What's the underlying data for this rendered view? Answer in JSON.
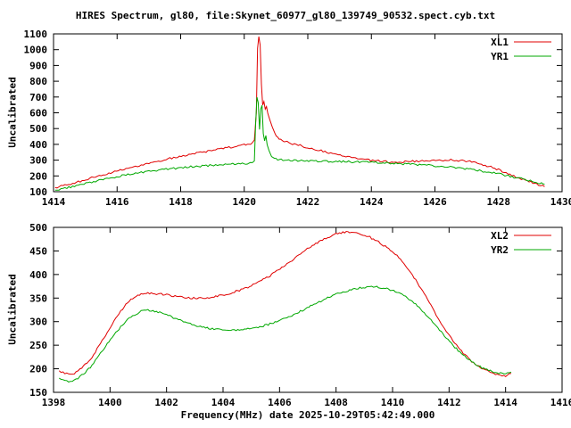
{
  "title": "HIRES Spectrum, gl80, file:Skynet_60977_gl80_139749_90532.spect.cyb.txt",
  "xlabel": "Frequency(MHz) date 2025-10-29T05:42:49.000",
  "colors": {
    "xl": "#e00000",
    "yr": "#00a800",
    "axis": "#000000",
    "background": "#ffffff"
  },
  "chart_data": [
    {
      "type": "line",
      "ylabel": "Uncalibrated",
      "xlim": [
        1414,
        1430
      ],
      "ylim": [
        100,
        1100
      ],
      "xticks": [
        1414,
        1416,
        1418,
        1420,
        1422,
        1424,
        1426,
        1428,
        1430
      ],
      "yticks": [
        100,
        200,
        300,
        400,
        500,
        600,
        700,
        800,
        900,
        1000,
        1100
      ],
      "grid": false,
      "legend_position": "top-right",
      "series": [
        {
          "name": "XL1",
          "color": "#e00000",
          "points": [
            [
              1414.05,
              126
            ],
            [
              1414.3,
              138
            ],
            [
              1414.6,
              153
            ],
            [
              1414.9,
              170
            ],
            [
              1415.2,
              188
            ],
            [
              1415.5,
              205
            ],
            [
              1415.8,
              221
            ],
            [
              1416.1,
              237
            ],
            [
              1416.4,
              252
            ],
            [
              1416.7,
              267
            ],
            [
              1417.0,
              281
            ],
            [
              1417.3,
              295
            ],
            [
              1417.6,
              308
            ],
            [
              1417.9,
              320
            ],
            [
              1418.2,
              332
            ],
            [
              1418.5,
              344
            ],
            [
              1418.8,
              355
            ],
            [
              1419.1,
              366
            ],
            [
              1419.4,
              376
            ],
            [
              1419.7,
              386
            ],
            [
              1420.0,
              396
            ],
            [
              1420.15,
              402
            ],
            [
              1420.25,
              410
            ],
            [
              1420.32,
              430
            ],
            [
              1420.38,
              600
            ],
            [
              1420.42,
              1010
            ],
            [
              1420.46,
              1085
            ],
            [
              1420.5,
              1030
            ],
            [
              1420.54,
              780
            ],
            [
              1420.58,
              650
            ],
            [
              1420.62,
              665
            ],
            [
              1420.66,
              620
            ],
            [
              1420.7,
              645
            ],
            [
              1420.74,
              600
            ],
            [
              1420.8,
              560
            ],
            [
              1420.88,
              515
            ],
            [
              1420.96,
              472
            ],
            [
              1421.05,
              445
            ],
            [
              1421.2,
              425
            ],
            [
              1421.4,
              410
            ],
            [
              1421.7,
              395
            ],
            [
              1422.0,
              380
            ],
            [
              1422.3,
              365
            ],
            [
              1422.6,
              350
            ],
            [
              1422.9,
              336
            ],
            [
              1423.2,
              323
            ],
            [
              1423.5,
              312
            ],
            [
              1423.8,
              303
            ],
            [
              1424.1,
              296
            ],
            [
              1424.4,
              291
            ],
            [
              1424.7,
              289
            ],
            [
              1425.0,
              290
            ],
            [
              1425.3,
              292
            ],
            [
              1425.6,
              295
            ],
            [
              1425.9,
              297
            ],
            [
              1426.2,
              299
            ],
            [
              1426.5,
              300
            ],
            [
              1426.8,
              298
            ],
            [
              1427.1,
              291
            ],
            [
              1427.4,
              278
            ],
            [
              1427.7,
              260
            ],
            [
              1428.0,
              239
            ],
            [
              1428.3,
              215
            ],
            [
              1428.6,
              191
            ],
            [
              1428.9,
              168
            ],
            [
              1429.2,
              148
            ],
            [
              1429.45,
              132
            ]
          ]
        },
        {
          "name": "YR1",
          "color": "#00a800",
          "points": [
            [
              1414.05,
              110
            ],
            [
              1414.3,
              120
            ],
            [
              1414.6,
              132
            ],
            [
              1414.9,
              146
            ],
            [
              1415.2,
              160
            ],
            [
              1415.5,
              174
            ],
            [
              1415.8,
              187
            ],
            [
              1416.1,
              199
            ],
            [
              1416.4,
              210
            ],
            [
              1416.7,
              220
            ],
            [
              1417.0,
              229
            ],
            [
              1417.3,
              237
            ],
            [
              1417.6,
              244
            ],
            [
              1417.9,
              250
            ],
            [
              1418.2,
              256
            ],
            [
              1418.5,
              261
            ],
            [
              1418.8,
              265
            ],
            [
              1419.1,
              269
            ],
            [
              1419.4,
              272
            ],
            [
              1419.7,
              275
            ],
            [
              1420.0,
              278
            ],
            [
              1420.15,
              281
            ],
            [
              1420.25,
              285
            ],
            [
              1420.32,
              300
            ],
            [
              1420.36,
              540
            ],
            [
              1420.4,
              705
            ],
            [
              1420.44,
              660
            ],
            [
              1420.48,
              500
            ],
            [
              1420.52,
              620
            ],
            [
              1420.56,
              645
            ],
            [
              1420.6,
              470
            ],
            [
              1420.64,
              420
            ],
            [
              1420.68,
              455
            ],
            [
              1420.72,
              400
            ],
            [
              1420.78,
              355
            ],
            [
              1420.86,
              325
            ],
            [
              1420.95,
              310
            ],
            [
              1421.1,
              304
            ],
            [
              1421.4,
              300
            ],
            [
              1421.8,
              297
            ],
            [
              1422.2,
              295
            ],
            [
              1422.6,
              293
            ],
            [
              1423.0,
              291
            ],
            [
              1423.4,
              289
            ],
            [
              1423.8,
              287
            ],
            [
              1424.2,
              284
            ],
            [
              1424.6,
              281
            ],
            [
              1425.0,
              277
            ],
            [
              1425.4,
              272
            ],
            [
              1425.8,
              267
            ],
            [
              1426.2,
              260
            ],
            [
              1426.6,
              253
            ],
            [
              1427.0,
              244
            ],
            [
              1427.4,
              233
            ],
            [
              1427.8,
              220
            ],
            [
              1428.2,
              205
            ],
            [
              1428.6,
              188
            ],
            [
              1429.0,
              169
            ],
            [
              1429.3,
              155
            ],
            [
              1429.45,
              148
            ]
          ]
        }
      ]
    },
    {
      "type": "line",
      "ylabel": "Uncalibrated",
      "xlim": [
        1398,
        1416
      ],
      "ylim": [
        150,
        500
      ],
      "xticks": [
        1398,
        1400,
        1402,
        1404,
        1406,
        1408,
        1410,
        1412,
        1414,
        1416
      ],
      "yticks": [
        150,
        200,
        250,
        300,
        350,
        400,
        450,
        500
      ],
      "grid": false,
      "legend_position": "top-right",
      "series": [
        {
          "name": "XL2",
          "color": "#e00000",
          "points": [
            [
              1398.2,
              196
            ],
            [
              1398.4,
              190
            ],
            [
              1398.6,
              188
            ],
            [
              1398.8,
              192
            ],
            [
              1399.0,
              202
            ],
            [
              1399.3,
              220
            ],
            [
              1399.6,
              247
            ],
            [
              1399.9,
              278
            ],
            [
              1400.2,
              308
            ],
            [
              1400.5,
              332
            ],
            [
              1400.8,
              350
            ],
            [
              1401.1,
              358
            ],
            [
              1401.4,
              360
            ],
            [
              1401.7,
              359
            ],
            [
              1402.0,
              357
            ],
            [
              1402.3,
              354
            ],
            [
              1402.6,
              351
            ],
            [
              1402.9,
              350
            ],
            [
              1403.2,
              350
            ],
            [
              1403.5,
              351
            ],
            [
              1403.8,
              354
            ],
            [
              1404.1,
              358
            ],
            [
              1404.4,
              363
            ],
            [
              1404.7,
              369
            ],
            [
              1405.0,
              376
            ],
            [
              1405.3,
              385
            ],
            [
              1405.6,
              395
            ],
            [
              1405.9,
              407
            ],
            [
              1406.2,
              420
            ],
            [
              1406.5,
              433
            ],
            [
              1406.8,
              446
            ],
            [
              1407.1,
              459
            ],
            [
              1407.4,
              470
            ],
            [
              1407.7,
              479
            ],
            [
              1408.0,
              486
            ],
            [
              1408.3,
              490
            ],
            [
              1408.6,
              490
            ],
            [
              1408.9,
              486
            ],
            [
              1409.2,
              479
            ],
            [
              1409.5,
              469
            ],
            [
              1409.8,
              457
            ],
            [
              1410.1,
              443
            ],
            [
              1410.4,
              424
            ],
            [
              1410.7,
              400
            ],
            [
              1411.0,
              371
            ],
            [
              1411.3,
              340
            ],
            [
              1411.6,
              309
            ],
            [
              1411.9,
              280
            ],
            [
              1412.2,
              254
            ],
            [
              1412.5,
              233
            ],
            [
              1412.8,
              216
            ],
            [
              1413.1,
              203
            ],
            [
              1413.4,
              194
            ],
            [
              1413.7,
              188
            ],
            [
              1414.0,
              185
            ],
            [
              1414.2,
              190
            ]
          ]
        },
        {
          "name": "YR2",
          "color": "#00a800",
          "points": [
            [
              1398.2,
              180
            ],
            [
              1398.4,
              175
            ],
            [
              1398.6,
              173
            ],
            [
              1398.8,
              177
            ],
            [
              1399.0,
              186
            ],
            [
              1399.3,
              203
            ],
            [
              1399.6,
              227
            ],
            [
              1399.9,
              253
            ],
            [
              1400.2,
              277
            ],
            [
              1400.5,
              297
            ],
            [
              1400.8,
              313
            ],
            [
              1401.1,
              322
            ],
            [
              1401.4,
              324
            ],
            [
              1401.7,
              321
            ],
            [
              1402.0,
              315
            ],
            [
              1402.3,
              307
            ],
            [
              1402.6,
              300
            ],
            [
              1402.9,
              294
            ],
            [
              1403.2,
              289
            ],
            [
              1403.5,
              286
            ],
            [
              1403.8,
              284
            ],
            [
              1404.1,
              283
            ],
            [
              1404.4,
              282
            ],
            [
              1404.7,
              283
            ],
            [
              1405.0,
              285
            ],
            [
              1405.3,
              289
            ],
            [
              1405.6,
              294
            ],
            [
              1405.9,
              300
            ],
            [
              1406.2,
              307
            ],
            [
              1406.5,
              315
            ],
            [
              1406.8,
              324
            ],
            [
              1407.1,
              333
            ],
            [
              1407.4,
              342
            ],
            [
              1407.7,
              351
            ],
            [
              1408.0,
              358
            ],
            [
              1408.3,
              364
            ],
            [
              1408.6,
              369
            ],
            [
              1408.9,
              372
            ],
            [
              1409.2,
              374
            ],
            [
              1409.5,
              373
            ],
            [
              1409.8,
              370
            ],
            [
              1410.1,
              364
            ],
            [
              1410.4,
              355
            ],
            [
              1410.7,
              343
            ],
            [
              1411.0,
              327
            ],
            [
              1411.3,
              308
            ],
            [
              1411.6,
              287
            ],
            [
              1411.9,
              266
            ],
            [
              1412.2,
              246
            ],
            [
              1412.5,
              229
            ],
            [
              1412.8,
              215
            ],
            [
              1413.1,
              204
            ],
            [
              1413.4,
              196
            ],
            [
              1413.7,
              191
            ],
            [
              1414.0,
              189
            ],
            [
              1414.2,
              193
            ]
          ]
        }
      ]
    }
  ]
}
